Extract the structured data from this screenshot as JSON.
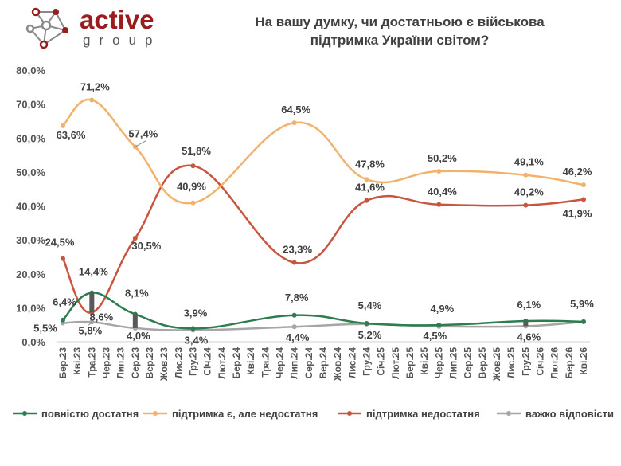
{
  "logo": {
    "word": "active",
    "sub": "group",
    "colors": {
      "word": "#9b1c1f",
      "sub": "#555555",
      "node_red": "#9b1c1f",
      "node_gray": "#8a8a8a"
    }
  },
  "chart_data": {
    "type": "line",
    "title_lines": [
      "На вашу думку, чи достатньою є військова",
      "підтримка України світом?"
    ],
    "xlabel": "",
    "ylabel": "",
    "ylim": [
      0,
      80
    ],
    "yticks": [
      "0,0%",
      "10,0%",
      "20,0%",
      "30,0%",
      "40,0%",
      "50,0%",
      "60,0%",
      "70,0%",
      "80,0%"
    ],
    "categories": [
      "Бер.23",
      "Кві.23",
      "Тра.23",
      "Чер.23",
      "Лип.23",
      "Сер.23",
      "Вер.23",
      "Жов.23",
      "Лис.23",
      "Гру.23",
      "Січ.24",
      "Лют.24",
      "Бер.24",
      "Кві.24",
      "Тра.24",
      "Чер.24",
      "Лип.24",
      "Сер.24",
      "Вер.24",
      "Жов.24",
      "Лис.24",
      "Гру.24",
      "Січ.25",
      "Лют.25",
      "Бер.25",
      "Кві.25",
      "Чер.25",
      "Лип.25",
      "Сер.25",
      "Вер.25",
      "Жов.25",
      "Лис.25",
      "Гру.25",
      "Січ.26",
      "Лют.26",
      "Бер.26",
      "Кві.26"
    ],
    "gridlines": false,
    "legend_position": "bottom",
    "series": [
      {
        "name": "повністю достатня",
        "color": "#2e7d4f",
        "points": [
          [
            0,
            6.4
          ],
          [
            2,
            14.4
          ],
          [
            5,
            8.1
          ],
          [
            9,
            3.9
          ],
          [
            16,
            7.8
          ],
          [
            21,
            5.4
          ],
          [
            26,
            4.9
          ],
          [
            32,
            6.1
          ],
          [
            36,
            5.9
          ]
        ],
        "labels": [
          "6,4%",
          "14,4%",
          "8,1%",
          "3,9%",
          "7,8%",
          "5,4%",
          "4,9%",
          "6,1%",
          "5,9%"
        ]
      },
      {
        "name": "підтримка є, але недостатня",
        "color": "#f2b26b",
        "points": [
          [
            0,
            63.6
          ],
          [
            2,
            71.2
          ],
          [
            5,
            57.4
          ],
          [
            9,
            40.9
          ],
          [
            16,
            64.5
          ],
          [
            21,
            47.8
          ],
          [
            26,
            50.2
          ],
          [
            32,
            49.1
          ],
          [
            36,
            46.2
          ]
        ],
        "labels": [
          "63,6%",
          "71,2%",
          "57,4%",
          "40,9%",
          "64,5%",
          "47,8%",
          "50,2%",
          "49,1%",
          "46,2%"
        ]
      },
      {
        "name": "підтримка недостатня",
        "color": "#c8563f",
        "points": [
          [
            0,
            24.5
          ],
          [
            2,
            8.6
          ],
          [
            5,
            30.5
          ],
          [
            9,
            51.8
          ],
          [
            16,
            23.3
          ],
          [
            21,
            41.6
          ],
          [
            26,
            40.4
          ],
          [
            32,
            40.2
          ],
          [
            36,
            41.9
          ]
        ],
        "labels": [
          "24,5%",
          "8,6%",
          "30,5%",
          "51,8%",
          "23,3%",
          "41,6%",
          "40,4%",
          "40,2%",
          "41,9%"
        ]
      },
      {
        "name": "важко відповісти",
        "color": "#a6a6a6",
        "points": [
          [
            0,
            5.5
          ],
          [
            2,
            5.8
          ],
          [
            5,
            4.0
          ],
          [
            9,
            3.4
          ],
          [
            16,
            4.4
          ],
          [
            21,
            5.2
          ],
          [
            26,
            4.5
          ],
          [
            32,
            4.6
          ],
          [
            36,
            5.9
          ]
        ],
        "labels": [
          "5,5%",
          "5,8%",
          "4,0%",
          "3,4%",
          "4,4%",
          "5,2%",
          "4,5%",
          "4,6%",
          ""
        ]
      }
    ]
  }
}
